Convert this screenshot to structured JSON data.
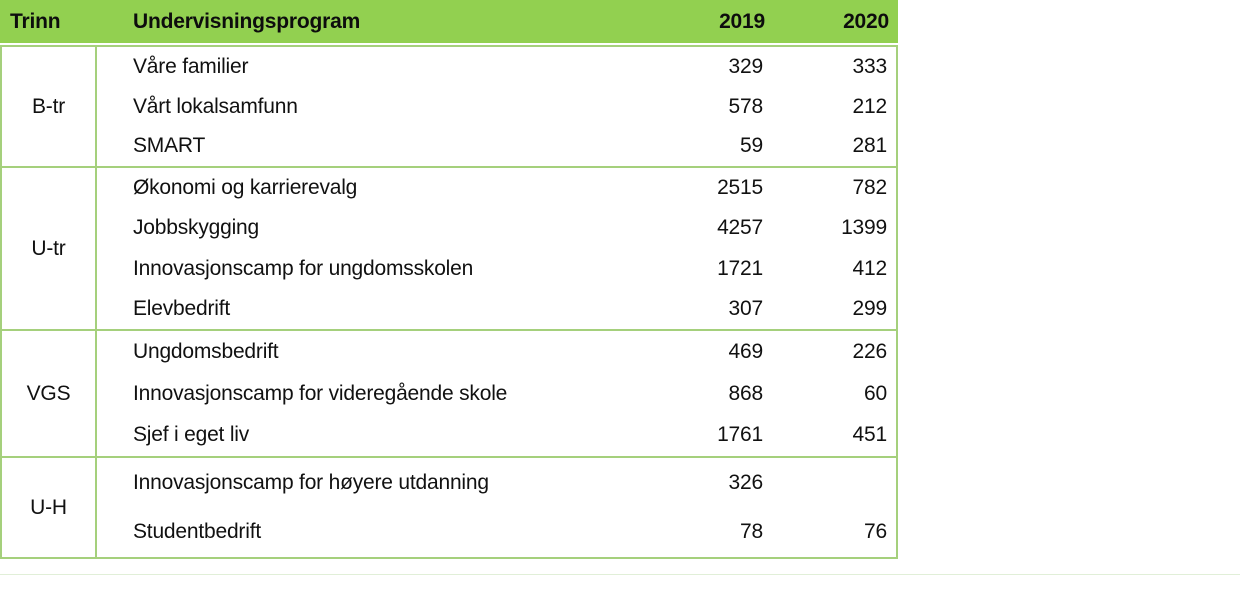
{
  "colors": {
    "header_bg": "#92d050",
    "border_green": "#a5d07c",
    "text": "#111111"
  },
  "table": {
    "header": {
      "trinn": "Trinn",
      "program": "Undervisningsprogram",
      "y2019": "2019",
      "y2020": "2020"
    },
    "groups": [
      {
        "trinn": "B-tr",
        "programs": [
          {
            "name": "Våre familier",
            "v2019": "329",
            "v2020": "333"
          },
          {
            "name": "Vårt lokalsamfunn",
            "v2019": "578",
            "v2020": "212"
          },
          {
            "name": "SMART",
            "v2019": "59",
            "v2020": "281"
          }
        ]
      },
      {
        "trinn": "U-tr",
        "programs": [
          {
            "name": "Økonomi og karrierevalg",
            "v2019": "2515",
            "v2020": "782"
          },
          {
            "name": "Jobbskygging",
            "v2019": "4257",
            "v2020": "1399"
          },
          {
            "name": "Innovasjonscamp for ungdomsskolen",
            "v2019": "1721",
            "v2020": "412"
          },
          {
            "name": "Elevbedrift",
            "v2019": "307",
            "v2020": "299"
          }
        ]
      },
      {
        "trinn": "VGS",
        "programs": [
          {
            "name": "Ungdomsbedrift",
            "v2019": "469",
            "v2020": "226"
          },
          {
            "name": "Innovasjonscamp for videregående skole",
            "v2019": "868",
            "v2020": "60"
          },
          {
            "name": "Sjef i eget liv",
            "v2019": "1761",
            "v2020": "451"
          }
        ]
      },
      {
        "trinn": "U-H",
        "programs": [
          {
            "name": "Innovasjonscamp for høyere utdanning",
            "v2019": "326",
            "v2020": ""
          },
          {
            "name": "Studentbedrift",
            "v2019": "78",
            "v2020": "76"
          }
        ]
      }
    ]
  },
  "chart_data": {
    "type": "table",
    "title": "",
    "columns": [
      "Trinn",
      "Undervisningsprogram",
      "2019",
      "2020"
    ],
    "rows": [
      [
        "B-tr",
        "Våre familier",
        329,
        333
      ],
      [
        "B-tr",
        "Vårt lokalsamfunn",
        578,
        212
      ],
      [
        "B-tr",
        "SMART",
        59,
        281
      ],
      [
        "U-tr",
        "Økonomi og karrierevalg",
        2515,
        782
      ],
      [
        "U-tr",
        "Jobbskygging",
        4257,
        1399
      ],
      [
        "U-tr",
        "Innovasjonscamp for ungdomsskolen",
        1721,
        412
      ],
      [
        "U-tr",
        "Elevbedrift",
        307,
        299
      ],
      [
        "VGS",
        "Ungdomsbedrift",
        469,
        226
      ],
      [
        "VGS",
        "Innovasjonscamp for videregående skole",
        868,
        60
      ],
      [
        "VGS",
        "Sjef i eget liv",
        1761,
        451
      ],
      [
        "U-H",
        "Innovasjonscamp for høyere utdanning",
        326,
        null
      ],
      [
        "U-H",
        "Studentbedrift",
        78,
        76
      ]
    ],
    "layout": {
      "header_fill": "#92d050",
      "grid_color": "#a5d07c",
      "group_column_merged": true
    }
  }
}
